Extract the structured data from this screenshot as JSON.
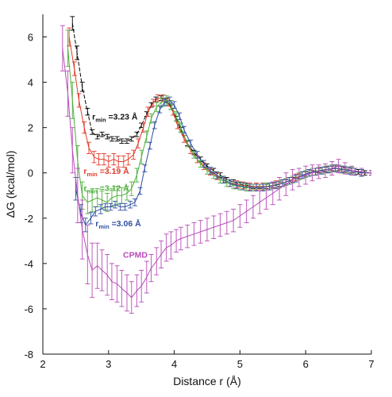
{
  "chart_data": {
    "type": "line",
    "xlabel": "Distance r (Å)",
    "ylabel": "ΔG (kcal/mol)",
    "xlim": [
      2,
      7
    ],
    "ylim": [
      -8,
      7
    ],
    "xticks": [
      "2",
      "3",
      "4",
      "5",
      "6",
      "7"
    ],
    "yticks": [
      "-8",
      "-6",
      "-4",
      "-2",
      "0",
      "2",
      "4",
      "6"
    ],
    "grid": false,
    "series": [
      {
        "color": "#000000",
        "dash": true,
        "x": [
          2.45,
          2.52,
          2.6,
          2.68,
          2.75,
          2.83,
          2.9,
          2.98,
          3.05,
          3.13,
          3.2,
          3.28,
          3.35,
          3.43,
          3.5,
          3.58,
          3.65,
          3.72,
          3.8,
          3.88,
          3.95,
          4.03,
          4.1,
          4.2,
          4.3,
          4.4,
          4.5,
          4.6,
          4.7,
          4.8,
          4.9,
          5.0,
          5.1,
          5.2,
          5.3,
          5.4,
          5.5,
          5.6,
          5.7,
          5.8,
          5.9,
          6.0,
          6.1,
          6.2,
          6.3,
          6.4,
          6.5,
          6.6,
          6.7,
          6.8,
          6.9,
          7.0
        ],
        "y": [
          6.6,
          5.3,
          3.8,
          2.7,
          1.8,
          1.6,
          1.7,
          1.6,
          1.5,
          1.5,
          1.4,
          1.4,
          1.5,
          1.7,
          2.1,
          2.6,
          3.0,
          3.25,
          3.3,
          3.2,
          2.9,
          2.4,
          1.9,
          1.3,
          0.9,
          0.6,
          0.3,
          0.1,
          -0.1,
          -0.3,
          -0.4,
          -0.5,
          -0.55,
          -0.6,
          -0.6,
          -0.6,
          -0.55,
          -0.5,
          -0.4,
          -0.3,
          -0.15,
          -0.05,
          0.0,
          0.1,
          0.15,
          0.2,
          0.2,
          0.15,
          0.1,
          0.05,
          0.0,
          0.0
        ],
        "err": [
          0.3,
          0.3,
          0.2,
          0.15,
          0.1,
          0.1,
          0.1,
          0.1,
          0.1,
          0.1,
          0.1,
          0.1,
          0.1,
          0.1,
          0.1,
          0.1,
          0.1,
          0.1,
          0.1,
          0.1,
          0.1,
          0.1,
          0.1,
          0.1,
          0.1,
          0.1,
          0.1,
          0.1,
          0.1,
          0.1,
          0.1,
          0.1,
          0.1,
          0.1,
          0.1,
          0.1,
          0.1,
          0.1,
          0.1,
          0.1,
          0.1,
          0.1,
          0.1,
          0.1,
          0.1,
          0.1,
          0.1,
          0.1,
          0.1,
          0.1,
          0.1,
          0.1
        ]
      },
      {
        "color": "#e03a2a",
        "dash": false,
        "x": [
          2.4,
          2.48,
          2.55,
          2.63,
          2.7,
          2.78,
          2.85,
          2.93,
          3.0,
          3.08,
          3.15,
          3.23,
          3.3,
          3.38,
          3.45,
          3.53,
          3.6,
          3.68,
          3.75,
          3.83,
          3.9,
          3.98,
          4.05,
          4.15,
          4.25,
          4.35,
          4.45,
          4.55,
          4.65,
          4.75,
          4.85,
          4.95,
          5.05,
          5.15,
          5.25,
          5.35,
          5.45,
          5.55,
          5.65,
          5.75,
          5.85,
          5.95,
          6.05,
          6.15,
          6.25,
          6.35,
          6.45,
          6.55,
          6.65,
          6.75,
          6.85,
          7.0
        ],
        "y": [
          6.0,
          4.6,
          3.2,
          2.0,
          1.1,
          0.7,
          0.6,
          0.6,
          0.5,
          0.6,
          0.5,
          0.5,
          0.6,
          0.8,
          1.3,
          2.0,
          2.7,
          3.1,
          3.3,
          3.3,
          3.1,
          2.7,
          2.1,
          1.5,
          1.0,
          0.6,
          0.3,
          0.05,
          -0.15,
          -0.3,
          -0.45,
          -0.5,
          -0.55,
          -0.6,
          -0.6,
          -0.6,
          -0.6,
          -0.5,
          -0.45,
          -0.35,
          -0.2,
          -0.1,
          0.0,
          0.05,
          0.1,
          0.15,
          0.2,
          0.15,
          0.1,
          0.05,
          0.0,
          0.0
        ],
        "err": [
          0.4,
          0.3,
          0.3,
          0.25,
          0.25,
          0.25,
          0.25,
          0.25,
          0.25,
          0.25,
          0.25,
          0.25,
          0.25,
          0.2,
          0.2,
          0.2,
          0.2,
          0.15,
          0.15,
          0.15,
          0.15,
          0.15,
          0.15,
          0.15,
          0.15,
          0.15,
          0.15,
          0.15,
          0.15,
          0.15,
          0.15,
          0.15,
          0.15,
          0.15,
          0.15,
          0.15,
          0.15,
          0.15,
          0.15,
          0.15,
          0.15,
          0.15,
          0.15,
          0.15,
          0.15,
          0.15,
          0.15,
          0.15,
          0.15,
          0.15,
          0.15,
          0.1
        ]
      },
      {
        "color": "#4caf3a",
        "dash": false,
        "x": [
          2.38,
          2.45,
          2.53,
          2.6,
          2.68,
          2.75,
          2.83,
          2.9,
          2.98,
          3.05,
          3.13,
          3.2,
          3.28,
          3.35,
          3.43,
          3.5,
          3.58,
          3.65,
          3.73,
          3.8,
          3.88,
          3.95,
          4.03,
          4.1,
          4.2,
          4.3,
          4.4,
          4.5,
          4.6,
          4.7,
          4.8,
          4.9,
          5.0,
          5.1,
          5.2,
          5.3,
          5.4,
          5.5,
          5.6,
          5.7,
          5.8,
          5.9,
          6.0,
          6.1,
          6.2,
          6.3,
          6.4,
          6.5,
          6.6,
          6.7,
          6.85,
          7.0
        ],
        "y": [
          5.5,
          3.2,
          0.5,
          -1.0,
          -1.3,
          -1.2,
          -1.1,
          -1.2,
          -1.3,
          -1.1,
          -1.0,
          -1.0,
          -0.9,
          -0.7,
          -0.1,
          0.7,
          1.6,
          2.4,
          2.9,
          3.1,
          3.2,
          3.0,
          2.5,
          2.0,
          1.3,
          0.8,
          0.4,
          0.1,
          -0.1,
          -0.3,
          -0.45,
          -0.55,
          -0.6,
          -0.65,
          -0.65,
          -0.65,
          -0.6,
          -0.55,
          -0.5,
          -0.4,
          -0.3,
          -0.15,
          -0.05,
          0.05,
          0.1,
          0.15,
          0.2,
          0.2,
          0.15,
          0.1,
          0.0,
          0.0
        ],
        "err": [
          0.8,
          0.8,
          0.7,
          0.6,
          0.5,
          0.5,
          0.4,
          0.4,
          0.4,
          0.4,
          0.4,
          0.35,
          0.3,
          0.3,
          0.3,
          0.3,
          0.25,
          0.2,
          0.2,
          0.2,
          0.2,
          0.2,
          0.2,
          0.2,
          0.15,
          0.15,
          0.15,
          0.15,
          0.15,
          0.15,
          0.15,
          0.15,
          0.15,
          0.15,
          0.15,
          0.15,
          0.15,
          0.15,
          0.15,
          0.15,
          0.15,
          0.15,
          0.15,
          0.15,
          0.15,
          0.15,
          0.15,
          0.15,
          0.15,
          0.15,
          0.15,
          0.1
        ]
      },
      {
        "color": "#2f4fa0",
        "dash": false,
        "x": [
          2.5,
          2.58,
          2.65,
          2.73,
          2.8,
          2.88,
          2.95,
          3.03,
          3.1,
          3.18,
          3.25,
          3.33,
          3.4,
          3.48,
          3.55,
          3.63,
          3.7,
          3.78,
          3.85,
          3.93,
          4.0,
          4.08,
          4.15,
          4.25,
          4.35,
          4.45,
          4.55,
          4.65,
          4.75,
          4.85,
          4.95,
          5.05,
          5.15,
          5.25,
          5.35,
          5.45,
          5.55,
          5.65,
          5.75,
          5.85,
          5.95,
          6.05,
          6.15,
          6.25,
          6.35,
          6.45,
          6.55,
          6.65,
          6.75,
          6.85,
          7.0
        ],
        "y": [
          -0.7,
          -1.8,
          -2.3,
          -2.0,
          -1.7,
          -1.6,
          -1.5,
          -1.5,
          -1.4,
          -1.5,
          -1.5,
          -1.4,
          -1.3,
          -0.8,
          0.2,
          1.2,
          2.1,
          2.8,
          3.1,
          3.2,
          3.0,
          2.5,
          1.9,
          1.3,
          0.8,
          0.4,
          0.1,
          -0.1,
          -0.3,
          -0.45,
          -0.55,
          -0.6,
          -0.65,
          -0.65,
          -0.65,
          -0.6,
          -0.55,
          -0.45,
          -0.35,
          -0.25,
          -0.1,
          0.0,
          0.05,
          0.1,
          0.15,
          0.2,
          0.15,
          0.1,
          0.05,
          0.0,
          0.0
        ],
        "err": [
          0.5,
          0.4,
          0.3,
          0.25,
          0.2,
          0.2,
          0.15,
          0.15,
          0.15,
          0.15,
          0.15,
          0.15,
          0.15,
          0.15,
          0.15,
          0.15,
          0.15,
          0.15,
          0.15,
          0.15,
          0.15,
          0.15,
          0.15,
          0.15,
          0.15,
          0.15,
          0.15,
          0.15,
          0.15,
          0.15,
          0.15,
          0.15,
          0.15,
          0.15,
          0.15,
          0.15,
          0.15,
          0.15,
          0.15,
          0.15,
          0.15,
          0.15,
          0.15,
          0.15,
          0.15,
          0.15,
          0.15,
          0.15,
          0.15,
          0.15,
          0.1
        ]
      },
      {
        "color": "#b94ab9",
        "dash": false,
        "x": [
          2.3,
          2.38,
          2.45,
          2.53,
          2.6,
          2.68,
          2.75,
          2.83,
          2.9,
          2.98,
          3.05,
          3.13,
          3.2,
          3.28,
          3.35,
          3.43,
          3.5,
          3.58,
          3.65,
          3.73,
          3.8,
          3.88,
          3.95,
          4.03,
          4.1,
          4.2,
          4.3,
          4.4,
          4.5,
          4.6,
          4.7,
          4.8,
          4.9,
          5.0,
          5.1,
          5.2,
          5.3,
          5.4,
          5.5,
          5.6,
          5.7,
          5.8,
          5.9,
          6.0,
          6.1,
          6.2,
          6.3,
          6.4,
          6.5,
          6.6,
          6.7,
          6.85,
          7.0
        ],
        "y": [
          5.5,
          3.5,
          1.0,
          -1.0,
          -2.5,
          -3.6,
          -4.3,
          -4.1,
          -4.3,
          -4.5,
          -4.8,
          -4.9,
          -5.1,
          -5.3,
          -5.5,
          -5.2,
          -5.0,
          -4.6,
          -4.2,
          -3.9,
          -3.6,
          -3.3,
          -3.2,
          -3.0,
          -2.9,
          -2.8,
          -2.7,
          -2.6,
          -2.5,
          -2.4,
          -2.3,
          -2.2,
          -2.1,
          -1.9,
          -1.7,
          -1.5,
          -1.3,
          -1.1,
          -0.9,
          -0.7,
          -0.5,
          -0.3,
          -0.2,
          -0.1,
          0.0,
          0.05,
          0.1,
          0.2,
          0.3,
          0.2,
          0.1,
          0.05,
          0.0
        ],
        "err": [
          1.0,
          1.0,
          1.0,
          1.2,
          1.3,
          1.3,
          1.2,
          1.0,
          0.9,
          0.9,
          0.8,
          0.8,
          0.8,
          0.8,
          0.7,
          0.7,
          0.7,
          0.7,
          0.6,
          0.6,
          0.6,
          0.6,
          0.6,
          0.5,
          0.5,
          0.5,
          0.5,
          0.5,
          0.5,
          0.5,
          0.5,
          0.5,
          0.5,
          0.5,
          0.5,
          0.5,
          0.5,
          0.5,
          0.5,
          0.5,
          0.5,
          0.45,
          0.4,
          0.4,
          0.35,
          0.3,
          0.3,
          0.3,
          0.3,
          0.25,
          0.2,
          0.15,
          0.1
        ]
      }
    ],
    "annotations": [
      {
        "pre": "r",
        "sub": "min",
        "post": " =3.23 Å",
        "color": "#111111",
        "x": 2.75,
        "y": 2.35
      },
      {
        "pre": "r",
        "sub": "min",
        "post": " =3.19 Å",
        "color": "#e03a2a",
        "x": 2.62,
        "y": -0.05
      },
      {
        "pre": "r",
        "sub": "min",
        "post": " =3.12 Å",
        "color": "#4caf3a",
        "x": 2.62,
        "y": -0.8
      },
      {
        "pre": "r",
        "sub": "min",
        "post": " =3.06 Å",
        "color": "#2f4fa0",
        "x": 2.8,
        "y": -2.35
      },
      {
        "pre": "CPMD",
        "sub": "",
        "post": "",
        "color": "#b94ab9",
        "x": 3.22,
        "y": -3.75
      }
    ]
  }
}
